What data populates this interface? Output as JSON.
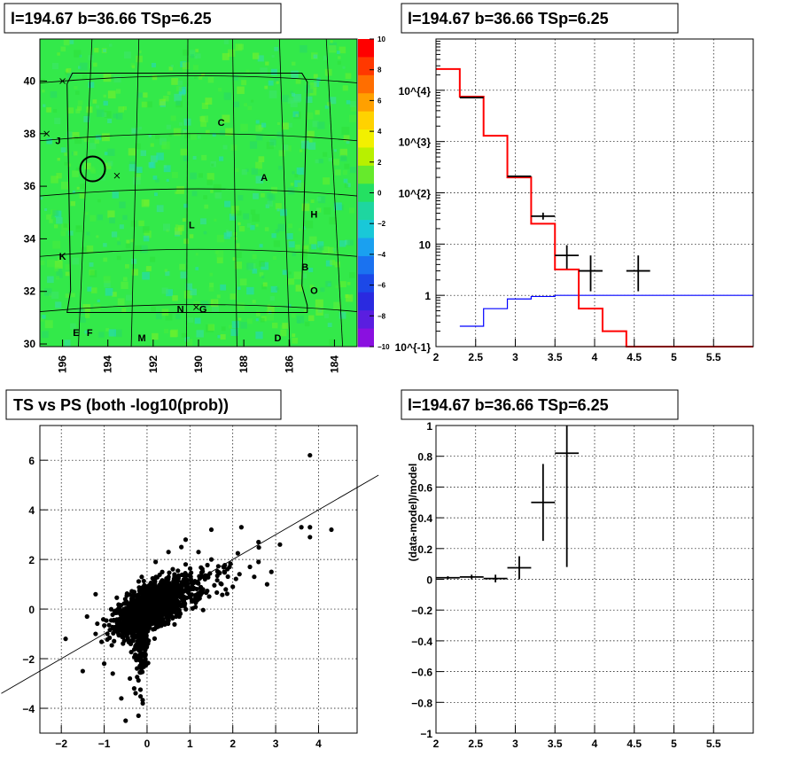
{
  "panels": {
    "map_title": "l=194.67 b=36.66 TSp=6.25",
    "spectrum_title": "l=194.67 b=36.66 TSp=6.25",
    "scatter_title": "TS vs PS (both -log10(prob))",
    "residual_title": "l=194.67 b=36.66 TSp=6.25"
  },
  "colors": {
    "data": "#000000",
    "model": "#ff0000",
    "background": "#0000ff",
    "map_fill": "#33e94a"
  },
  "chart_data": [
    {
      "type": "heatmap",
      "title": "l=194.67 b=36.66 TSp=6.25",
      "xlim": [
        197,
        183
      ],
      "ylim": [
        29.9,
        41.6
      ],
      "x_ticks": [
        "196",
        "194",
        "192",
        "190",
        "188",
        "186",
        "184"
      ],
      "y_ticks": [
        "30",
        "32",
        "34",
        "36",
        "38",
        "40"
      ],
      "colorbar_ticks": [
        "10",
        "8",
        "6",
        "4",
        "2",
        "0",
        "−2",
        "−4",
        "−6",
        "−8",
        "−10"
      ],
      "colorbar_range": [
        -10,
        10
      ],
      "source_circle": {
        "l": 194.67,
        "b": 36.66
      },
      "labels": [
        {
          "text": "J",
          "l": 196.2,
          "b": 37.6
        },
        {
          "text": "C",
          "l": 189.0,
          "b": 38.3
        },
        {
          "text": "A",
          "l": 187.1,
          "b": 36.2
        },
        {
          "text": "H",
          "l": 184.9,
          "b": 34.8
        },
        {
          "text": "L",
          "l": 190.3,
          "b": 34.4
        },
        {
          "text": "K",
          "l": 196.0,
          "b": 33.2
        },
        {
          "text": "B",
          "l": 185.3,
          "b": 32.8
        },
        {
          "text": "O",
          "l": 184.9,
          "b": 31.9
        },
        {
          "text": "N",
          "l": 190.8,
          "b": 31.2
        },
        {
          "text": "G",
          "l": 189.8,
          "b": 31.2
        },
        {
          "text": "E",
          "l": 195.4,
          "b": 30.3
        },
        {
          "text": "F",
          "l": 194.8,
          "b": 30.3
        },
        {
          "text": "M",
          "l": 192.5,
          "b": 30.1
        },
        {
          "text": "D",
          "l": 186.5,
          "b": 30.1
        }
      ],
      "crosses": [
        {
          "l": 196.0,
          "b": 40.0
        },
        {
          "l": 196.7,
          "b": 38.0
        },
        {
          "l": 193.6,
          "b": 36.4
        },
        {
          "l": 190.1,
          "b": 31.4
        }
      ]
    },
    {
      "type": "line",
      "title": "l=194.67 b=36.66 TSp=6.25",
      "y_scale": "log",
      "xlim": [
        2,
        6
      ],
      "ylim": [
        0.1,
        100000
      ],
      "x_ticks": [
        "2",
        "2.5",
        "3",
        "3.5",
        "4",
        "4.5",
        "5",
        "5.5"
      ],
      "y_ticks": [
        "10^{-1}",
        "1",
        "10",
        "10^{2}",
        "10^{3}",
        "10^{4}"
      ],
      "model_steps": {
        "edges": [
          2.0,
          2.3,
          2.6,
          2.9,
          3.2,
          3.5,
          3.8,
          4.1,
          4.4,
          6.0
        ],
        "values": [
          26000,
          7500,
          1300,
          200,
          25,
          3.2,
          0.55,
          0.2,
          0.1
        ]
      },
      "background_steps": {
        "edges": [
          2.3,
          2.6,
          2.9,
          3.2,
          3.5,
          6.0
        ],
        "values": [
          0.25,
          0.55,
          0.85,
          0.95,
          1.0
        ]
      },
      "data_points": [
        {
          "x": 2.45,
          "xerr": 0.15,
          "y": 7200,
          "ylo": 7200,
          "yhi": 7200
        },
        {
          "x": 3.05,
          "xerr": 0.15,
          "y": 210,
          "ylo": 210,
          "yhi": 210
        },
        {
          "x": 3.35,
          "xerr": 0.15,
          "y": 35,
          "ylo": 30,
          "yhi": 41
        },
        {
          "x": 3.65,
          "xerr": 0.15,
          "y": 6,
          "ylo": 3.3,
          "yhi": 9.5
        },
        {
          "x": 3.95,
          "xerr": 0.15,
          "y": 3,
          "ylo": 1.2,
          "yhi": 6
        },
        {
          "x": 4.55,
          "xerr": 0.15,
          "y": 3,
          "ylo": 1.2,
          "yhi": 6
        }
      ]
    },
    {
      "type": "scatter",
      "title": "TS vs PS (both -log10(prob))",
      "xlim": [
        -2.5,
        4.9
      ],
      "ylim": [
        -5.0,
        7.4
      ],
      "x_ticks": [
        "−2",
        "−1",
        "0",
        "1",
        "2",
        "3",
        "4"
      ],
      "y_ticks": [
        "−4",
        "−2",
        "0",
        "2",
        "4",
        "6"
      ],
      "reference_line": {
        "slope": 1.0,
        "intercept": 0.0
      },
      "points": [
        [
          3.8,
          6.2
        ],
        [
          3.6,
          3.3
        ],
        [
          3.8,
          3.3
        ],
        [
          3.8,
          2.9
        ],
        [
          4.3,
          3.2
        ],
        [
          3.1,
          2.6
        ],
        [
          2.6,
          2.7
        ],
        [
          2.6,
          1.9
        ],
        [
          2.4,
          1.7
        ],
        [
          2.2,
          3.3
        ],
        [
          1.5,
          3.2
        ],
        [
          0.9,
          2.8
        ],
        [
          0.8,
          2.5
        ],
        [
          2.8,
          1.0
        ],
        [
          2.5,
          1.3
        ],
        [
          2.9,
          1.5
        ],
        [
          2.0,
          0.9
        ],
        [
          1.8,
          1.5
        ],
        [
          -1.9,
          -1.2
        ],
        [
          -1.5,
          -2.5
        ],
        [
          -1.2,
          -1.0
        ],
        [
          -1.0,
          -2.2
        ],
        [
          -1.4,
          -0.3
        ],
        [
          -1.2,
          0.6
        ],
        [
          -0.5,
          -4.5
        ],
        [
          -0.2,
          -4.3
        ],
        [
          -0.3,
          -3.2
        ],
        [
          -0.6,
          -3.6
        ],
        [
          -0.1,
          -3.8
        ],
        [
          -0.4,
          -2.8
        ],
        [
          -0.8,
          -2.6
        ],
        [
          0.9,
          1.8
        ],
        [
          1.2,
          2.3
        ],
        [
          1.5,
          2.0
        ],
        [
          0.5,
          2.3
        ],
        [
          0.2,
          1.9
        ]
      ]
    },
    {
      "type": "line",
      "title": "l=194.67 b=36.66 TSp=6.25",
      "ylabel": "(data-model)/model",
      "xlim": [
        2,
        6
      ],
      "ylim": [
        -1,
        1
      ],
      "x_ticks": [
        "2",
        "2.5",
        "3",
        "3.5",
        "4",
        "4.5",
        "5",
        "5.5"
      ],
      "y_ticks": [
        "−1",
        "−0.8",
        "−0.6",
        "−0.4",
        "−0.2",
        "0",
        "0.2",
        "0.4",
        "0.6",
        "0.8",
        "1"
      ],
      "points": [
        {
          "x": 2.15,
          "xerr": 0.15,
          "y": 0.01,
          "ylo": 0.0,
          "yhi": 0.02
        },
        {
          "x": 2.45,
          "xerr": 0.15,
          "y": 0.015,
          "ylo": 0.0,
          "yhi": 0.03
        },
        {
          "x": 2.75,
          "xerr": 0.15,
          "y": 0.005,
          "ylo": -0.02,
          "yhi": 0.03
        },
        {
          "x": 3.05,
          "xerr": 0.15,
          "y": 0.075,
          "ylo": 0.0,
          "yhi": 0.15
        },
        {
          "x": 3.35,
          "xerr": 0.15,
          "y": 0.5,
          "ylo": 0.25,
          "yhi": 0.75
        },
        {
          "x": 3.65,
          "xerr": 0.15,
          "y": 0.82,
          "ylo": 0.08,
          "yhi": 1.0
        }
      ]
    }
  ]
}
